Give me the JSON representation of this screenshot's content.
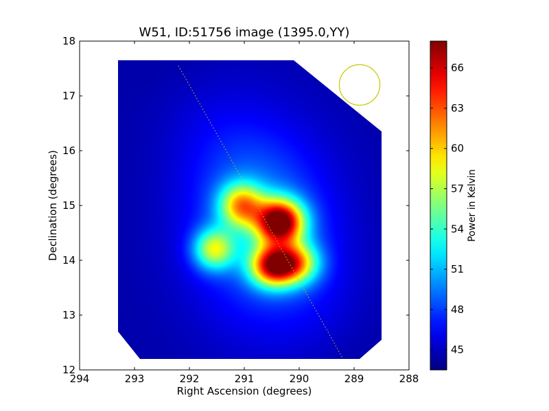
{
  "chart_data": {
    "type": "heatmap",
    "title": "W51, ID:51756 image (1395.0,YY)",
    "xlabel": "Right Ascension (degrees)",
    "ylabel": "Declination (degrees)",
    "colorbar_label": "Power in Kelvin",
    "xlim": [
      294,
      288
    ],
    "ylim": [
      12,
      18
    ],
    "x_ticks": [
      "294",
      "293",
      "292",
      "291",
      "290",
      "289",
      "288"
    ],
    "y_ticks": [
      "12",
      "13",
      "14",
      "15",
      "16",
      "17",
      "18"
    ],
    "colorbar_range": [
      43.5,
      68
    ],
    "colorbar_ticks": [
      "45",
      "48",
      "51",
      "54",
      "57",
      "60",
      "63",
      "66"
    ],
    "colormap": "jet",
    "background_value": 44.5,
    "map_corners_deg": [
      [
        293.3,
        17.65
      ],
      [
        290.1,
        17.65
      ],
      [
        288.5,
        16.35
      ],
      [
        288.5,
        12.55
      ],
      [
        288.9,
        12.2
      ],
      [
        292.9,
        12.2
      ],
      [
        293.3,
        12.7
      ]
    ],
    "sources": [
      {
        "ra": 290.35,
        "dec": 14.7,
        "peak_k": 68
      },
      {
        "ra": 290.45,
        "dec": 13.9,
        "peak_k": 65
      },
      {
        "ra": 291.05,
        "dec": 15.0,
        "peak_k": 59
      },
      {
        "ra": 291.55,
        "dec": 14.2,
        "peak_k": 56.5
      },
      {
        "ra": 290.0,
        "dec": 13.95,
        "peak_k": 58
      }
    ],
    "diffuse_ridge_k": 49,
    "galactic_plane_line": [
      [
        292.2,
        17.55
      ],
      [
        289.2,
        12.2
      ]
    ],
    "beam_circle": {
      "ra": 288.9,
      "dec": 17.2,
      "radius_deg": 0.37
    },
    "grid": false,
    "colors": {
      "plane_line": "#c8c800",
      "beam_circle": "#c8c800"
    }
  }
}
